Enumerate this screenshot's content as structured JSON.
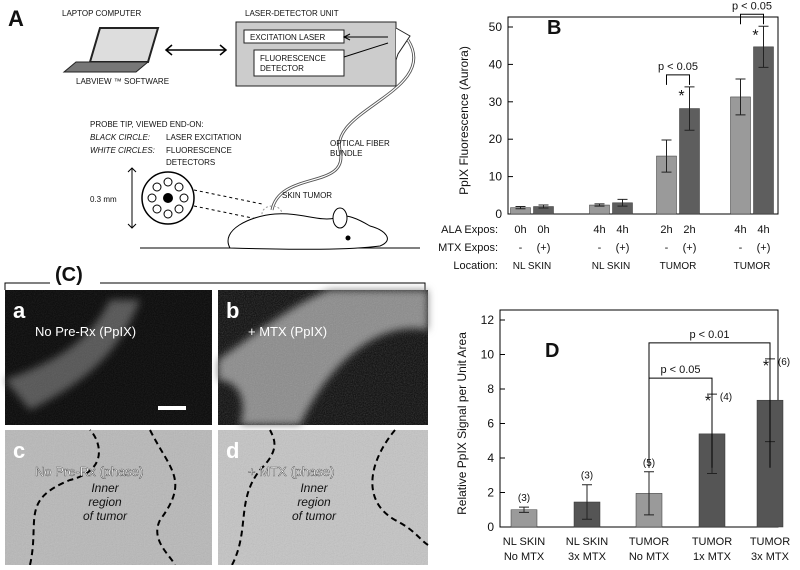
{
  "panel_a": {
    "label": "A",
    "laptop": "LAPTOP COMPUTER",
    "unit": "LASER-DETECTOR UNIT",
    "laser": "EXCITATION LASER",
    "detector": [
      "FLUORESCENCE",
      "DETECTOR"
    ],
    "software": "LABVIEW ™ SOFTWARE",
    "probe_title": "PROBE TIP, VIEWED END-ON:",
    "black_key": "BLACK CIRCLE:",
    "black_desc": "LASER EXCITATION",
    "white_key": "WHITE CIRCLES:",
    "white_desc": [
      "FLUORESCENCE",
      "DETECTORS"
    ],
    "fiber": [
      "OPTICAL FIBER",
      "BUNDLE"
    ],
    "scale": "0.3 mm",
    "tumor": "SKIN TUMOR"
  },
  "panel_c": {
    "label": "(C)",
    "panels": [
      {
        "letter": "a",
        "caption": "No Pre-Rx  (PpIX)"
      },
      {
        "letter": "b",
        "caption": "+ MTX  (PpIX)"
      },
      {
        "letter": "c",
        "caption": "No Pre-Rx  (phase)",
        "region": [
          "Inner",
          "region",
          "of tumor"
        ]
      },
      {
        "letter": "d",
        "caption": "+ MTX  (phase)",
        "region": [
          "Inner",
          "region",
          "of tumor"
        ]
      }
    ]
  },
  "chart_data": [
    {
      "type": "bar",
      "panel_label": "B",
      "ylabel": "PpIX Fluorescence  (Aurora)",
      "ylim": [
        0,
        50
      ],
      "yticks": [
        0,
        10,
        20,
        30,
        40,
        50
      ],
      "row_labels": [
        "ALA Expos:",
        "MTX Expos:",
        "Location:"
      ],
      "categories": [
        "NL SKIN",
        "NL SKIN",
        "TUMOR",
        "TUMOR"
      ],
      "ala_expos": [
        "0h",
        "4h",
        "2h",
        "4h"
      ],
      "series": [
        {
          "mtx_label": "-",
          "color": "#9a9a9a",
          "values": [
            1.7,
            2.4,
            15.5,
            31.3
          ],
          "errors": [
            0.3,
            0.3,
            4.3,
            4.8
          ]
        },
        {
          "mtx_label": "(+)",
          "color": "#5e5e5e",
          "values": [
            2.0,
            3.0,
            28.2,
            44.7
          ],
          "errors": [
            0.4,
            0.9,
            5.8,
            5.5
          ]
        }
      ],
      "annotations": [
        "p < 0.05",
        "p < 0.05"
      ],
      "star": "*"
    },
    {
      "type": "bar",
      "panel_label": "D",
      "ylabel": "Relative  PpIX Signal per Unit Area",
      "ylim": [
        0,
        12
      ],
      "yticks": [
        0,
        2,
        4,
        6,
        8,
        10,
        12
      ],
      "categories": [
        "NL SKIN",
        "NL SKIN",
        "TUMOR",
        "TUMOR",
        "TUMOR"
      ],
      "sublabels": [
        "No MTX",
        "3x MTX",
        "No MTX",
        "1x MTX",
        "3x MTX"
      ],
      "values": [
        1.0,
        1.45,
        1.95,
        5.4,
        7.35
      ],
      "errors": [
        0.15,
        1.0,
        1.25,
        2.3,
        2.4
      ],
      "colors": [
        "#9a9a9a",
        "#555555",
        "#9a9a9a",
        "#555555",
        "#555555"
      ],
      "n_labels": [
        "(3)",
        "(3)",
        "(5)",
        "(4)",
        "(6)"
      ],
      "annotations": [
        "p < 0.05",
        "p < 0.01"
      ],
      "star": "*"
    }
  ]
}
